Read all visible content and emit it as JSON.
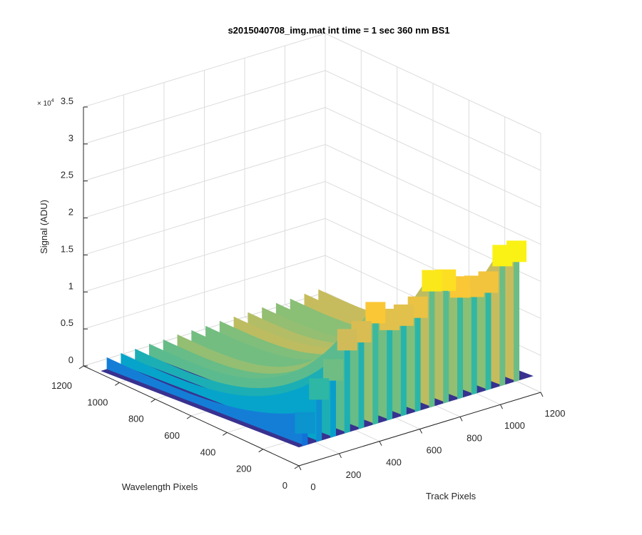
{
  "chart_data": {
    "type": "surface",
    "title": "s2015040708_img.mat int time = 1 sec  360 nm BS1",
    "xlabel": "Track Pixels",
    "ylabel": "Wavelength Pixels",
    "zlabel": "Signal (ADU)",
    "z_exponent_label": "× 10",
    "z_exponent_power": "4",
    "xlim": [
      0,
      1200
    ],
    "ylim": [
      0,
      1200
    ],
    "zlim": [
      0,
      35000
    ],
    "x_ticks": [
      "0",
      "200",
      "400",
      "600",
      "800",
      "1000",
      "1200"
    ],
    "y_ticks": [
      "0",
      "200",
      "400",
      "600",
      "800",
      "1000",
      "1200"
    ],
    "z_ticks": [
      "0",
      "0.5",
      "1",
      "1.5",
      "2",
      "2.5",
      "3",
      "3.5"
    ],
    "x_tick_values": [
      0,
      200,
      400,
      600,
      800,
      1000,
      1200
    ],
    "y_tick_values": [
      0,
      200,
      400,
      600,
      800,
      1000,
      1200
    ],
    "z_tick_values": [
      0,
      5000,
      10000,
      15000,
      20000,
      25000,
      30000,
      35000
    ],
    "grid": true,
    "colormap": "parula",
    "colormap_colors": [
      "#352a87",
      "#0f5cdd",
      "#1481d6",
      "#06a4ca",
      "#2eb7a4",
      "#87bf77",
      "#d1bb59",
      "#fec832",
      "#f9fb0e"
    ],
    "track_peaks": [
      {
        "track": 30,
        "peak_near": 7000,
        "peak_far": 2000
      },
      {
        "track": 100,
        "peak_near": 11000,
        "peak_far": 2000
      },
      {
        "track": 170,
        "peak_near": 13000,
        "peak_far": 2000
      },
      {
        "track": 240,
        "peak_near": 16500,
        "peak_far": 2100
      },
      {
        "track": 310,
        "peak_near": 17000,
        "peak_far": 2100
      },
      {
        "track": 380,
        "peak_near": 19000,
        "peak_far": 2200
      },
      {
        "track": 450,
        "peak_near": 17500,
        "peak_far": 2200
      },
      {
        "track": 520,
        "peak_near": 17500,
        "peak_far": 2200
      },
      {
        "track": 590,
        "peak_near": 18000,
        "peak_far": 2300
      },
      {
        "track": 660,
        "peak_near": 21000,
        "peak_far": 2300
      },
      {
        "track": 730,
        "peak_near": 20500,
        "peak_far": 2300
      },
      {
        "track": 800,
        "peak_near": 19000,
        "peak_far": 2400
      },
      {
        "track": 870,
        "peak_near": 18500,
        "peak_far": 2400
      },
      {
        "track": 940,
        "peak_near": 18500,
        "peak_far": 2400
      },
      {
        "track": 1010,
        "peak_near": 21500,
        "peak_far": 2500
      },
      {
        "track": 1080,
        "peak_near": 21500,
        "peak_far": 2500
      }
    ],
    "baseline_near": 2500,
    "baseline_far": 400
  }
}
